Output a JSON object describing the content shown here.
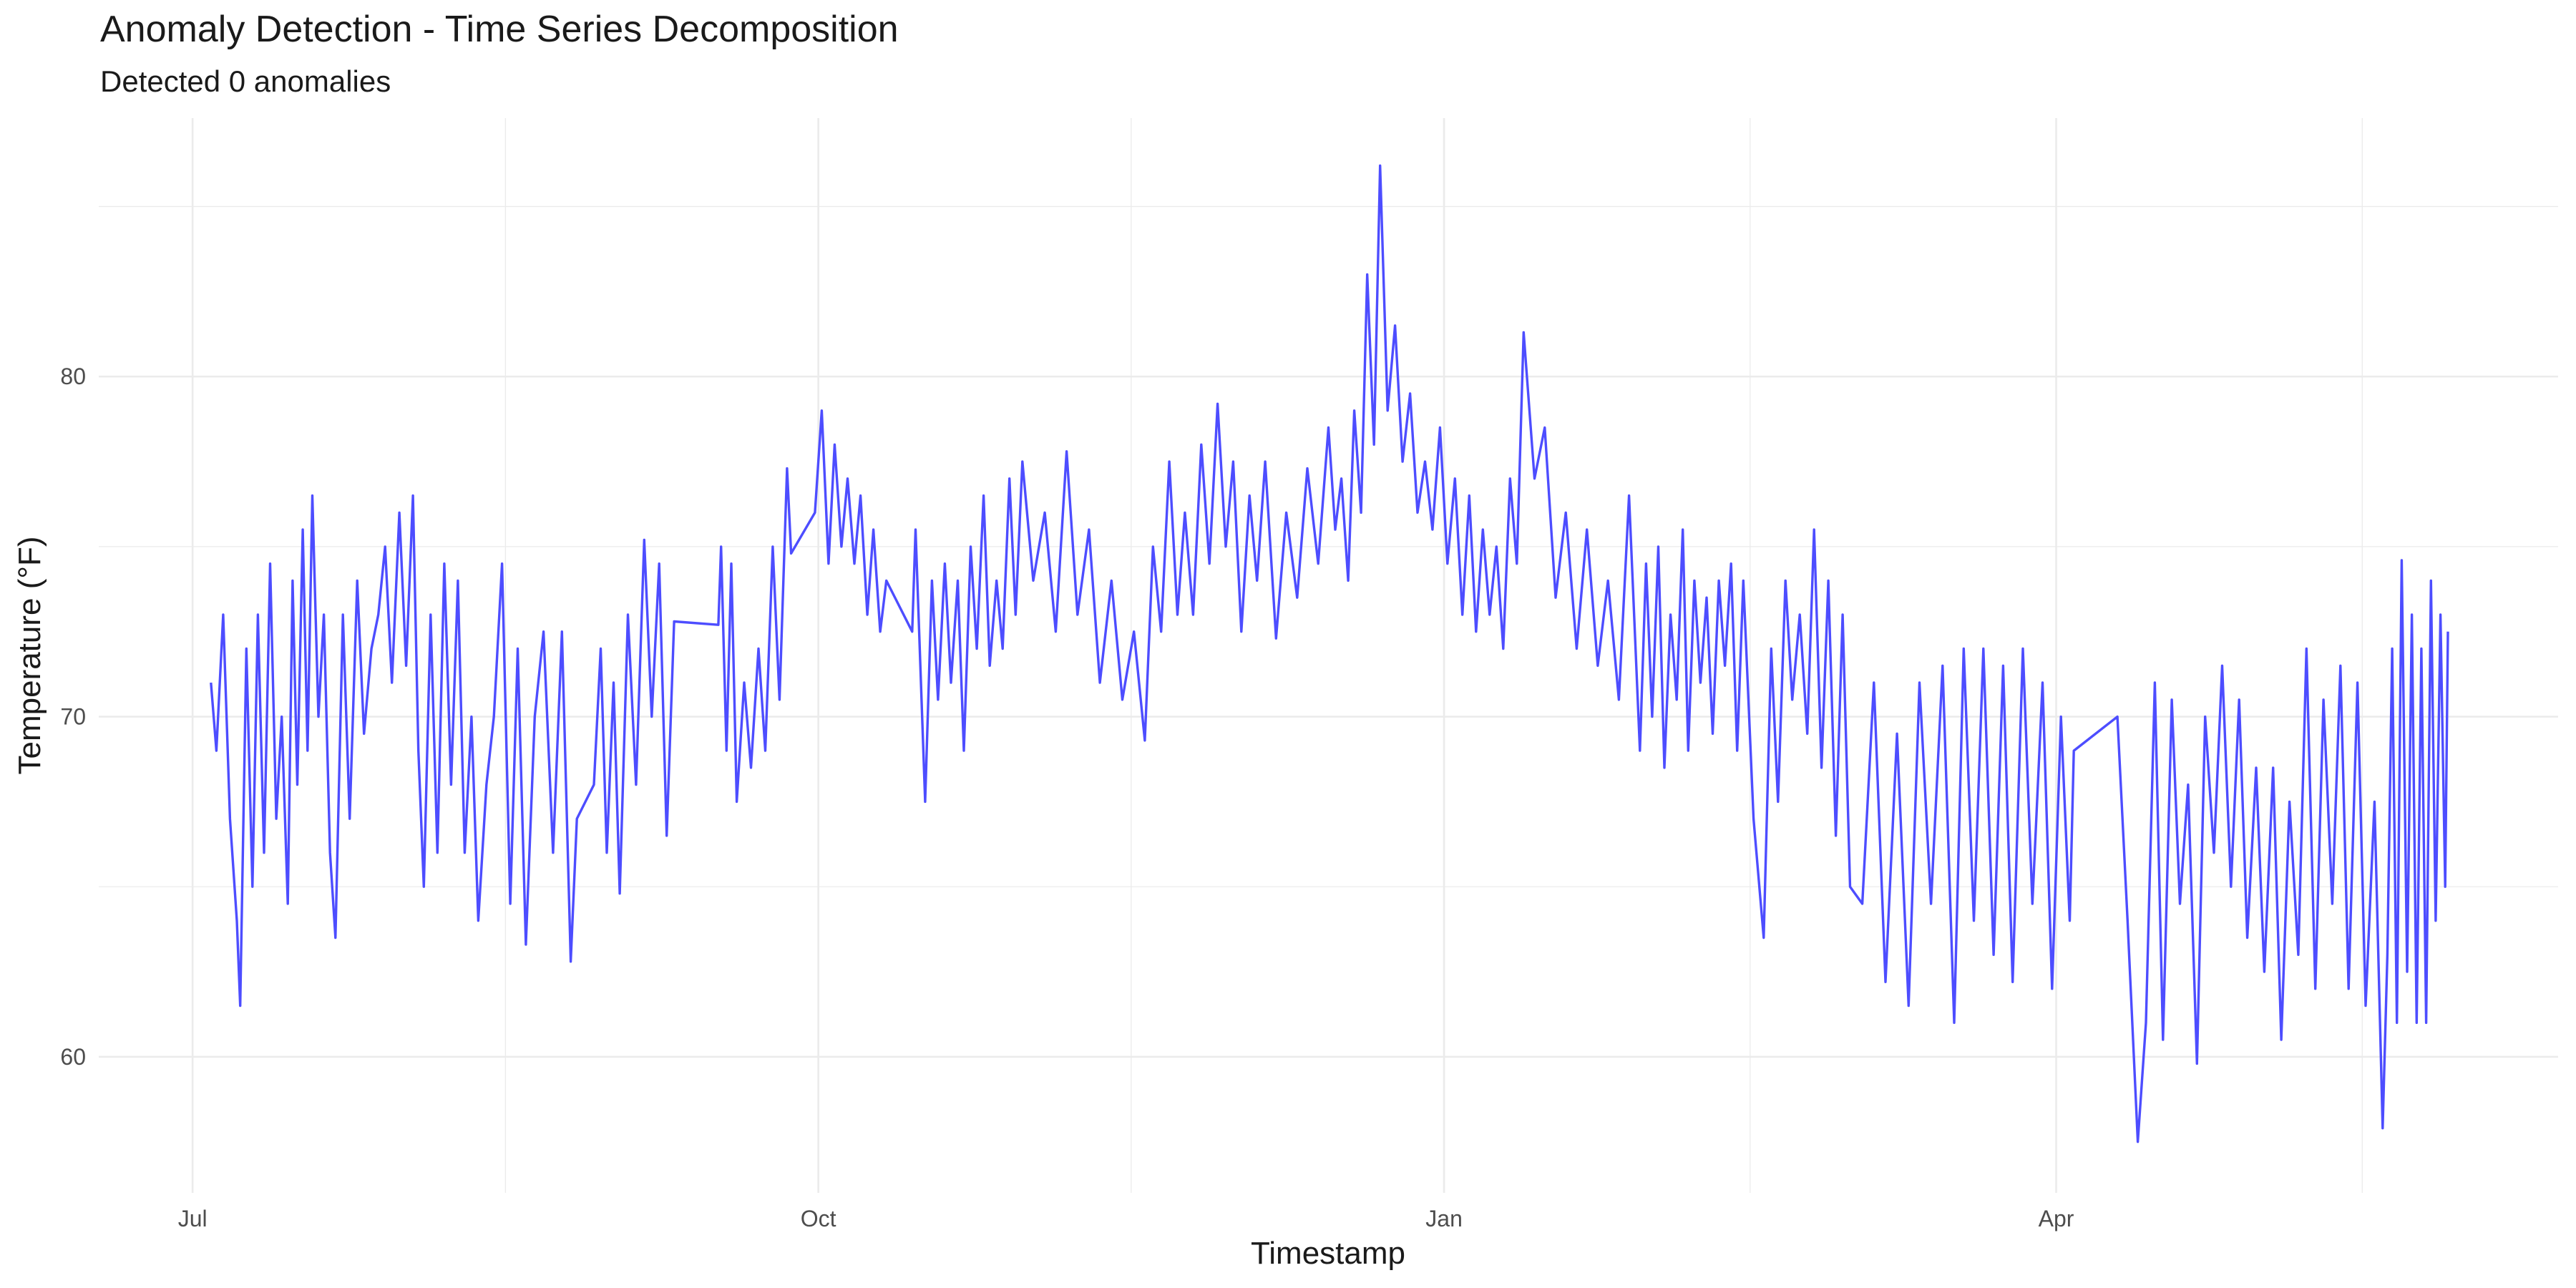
{
  "chart_data": {
    "type": "line",
    "title": "Anomaly Detection - Time Series Decomposition",
    "subtitle": "Detected 0 anomalies",
    "x_label": "Timestamp",
    "y_label": "Temperature (°F)",
    "xlim": [
      -13.8,
      347.8
    ],
    "xticks": [
      {
        "value": 0,
        "label": "Jul"
      },
      {
        "value": 92,
        "label": "Oct"
      },
      {
        "value": 184,
        "label": "Jan"
      },
      {
        "value": 274,
        "label": "Apr"
      }
    ],
    "ylim": [
      56,
      87.6
    ],
    "yticks": [
      60,
      70,
      80
    ],
    "grid": true,
    "x": [
      2.7,
      3.5,
      4.5,
      5.5,
      6.5,
      7,
      7.9,
      8.8,
      9.6,
      10.5,
      11.4,
      12.3,
      13.1,
      14,
      14.7,
      15.4,
      16.2,
      16.9,
      17.6,
      18.5,
      19.3,
      20.2,
      21,
      22.1,
      23.1,
      24.2,
      25.2,
      26.3,
      27.3,
      28.3,
      29.3,
      30.4,
      31.4,
      32.4,
      33.2,
      34,
      35,
      36,
      37,
      38,
      39,
      40,
      41,
      42,
      43.2,
      44.3,
      45.5,
      46.7,
      47.8,
      49,
      50.3,
      51.6,
      53,
      54.3,
      55.6,
      56.5,
      59,
      60,
      60.9,
      61.9,
      62.8,
      64,
      65.2,
      66.4,
      67.5,
      68.6,
      69.7,
      70.8,
      77.3,
      77.7,
      78.5,
      79.2,
      80,
      81.1,
      82.1,
      83.2,
      84.2,
      85.3,
      86.3,
      87.4,
      88,
      91.5,
      92.5,
      93.5,
      94.4,
      95.4,
      96.3,
      97.3,
      98.2,
      99.2,
      100.1,
      101.1,
      102,
      105.8,
      106.3,
      107.7,
      108.7,
      109.6,
      110.6,
      111.5,
      112.5,
      113.4,
      114.4,
      115.3,
      116.3,
      117.2,
      118.2,
      119.1,
      120.1,
      121,
      122,
      123.6,
      125.3,
      126.9,
      128.5,
      130.1,
      131.8,
      133.4,
      135.1,
      136.7,
      138.4,
      140,
      141.2,
      142.4,
      143.6,
      144.8,
      145.9,
      147.1,
      148.3,
      149.5,
      150.7,
      151.9,
      153,
      154.2,
      155.4,
      156.5,
      157.7,
      159.3,
      160.8,
      162.4,
      163.9,
      165.5,
      167,
      168,
      168.9,
      169.9,
      170.8,
      171.8,
      172.7,
      173.7,
      174.6,
      175.7,
      176.8,
      177.9,
      179,
      180.1,
      181.2,
      182.3,
      183.4,
      184.5,
      185.6,
      186.7,
      187.7,
      188.7,
      189.7,
      190.7,
      191.7,
      192.7,
      193.7,
      194.7,
      195.7,
      197.3,
      198.8,
      200.4,
      201.9,
      203.5,
      205,
      206.6,
      208.1,
      209.7,
      211.2,
      212.8,
      213.7,
      214.6,
      215.5,
      216.4,
      217.3,
      218.2,
      219.1,
      219.9,
      220.8,
      221.7,
      222.6,
      223.5,
      224.4,
      225.3,
      226.2,
      227.1,
      228,
      229.5,
      231,
      232.1,
      233.1,
      234.2,
      235.2,
      236.3,
      237.4,
      238.4,
      239.5,
      240.5,
      241.6,
      242.6,
      243.7,
      245.5,
      247.2,
      248.9,
      250.6,
      252.3,
      253.9,
      255.6,
      257.3,
      259,
      260.4,
      261.9,
      263.3,
      264.8,
      266.2,
      267.6,
      269.1,
      270.5,
      272,
      273.4,
      274.7,
      276,
      276.6,
      283,
      284.5,
      286,
      287.2,
      288.5,
      289.7,
      291,
      292.2,
      293.4,
      294.7,
      295.9,
      297.2,
      298.4,
      299.7,
      300.9,
      302.1,
      303.4,
      304.6,
      305.9,
      307.1,
      308.3,
      309.6,
      310.8,
      312.1,
      313.3,
      314.6,
      315.8,
      317,
      318.3,
      319.5,
      320.8,
      322,
      322.7,
      323.4,
      324.1,
      324.8,
      325.6,
      326.3,
      327,
      327.7,
      328.4,
      329.1,
      329.8,
      330.5,
      331.2,
      331.6
    ],
    "series": [
      {
        "color": "#4d4dff",
        "values": [
          71,
          69,
          73,
          67,
          64,
          61.5,
          72,
          65,
          73,
          66,
          74.5,
          67,
          70,
          64.5,
          74,
          68,
          75.5,
          69,
          76.5,
          70,
          73,
          66,
          63.5,
          73,
          67,
          74,
          69.5,
          72,
          73,
          75,
          71,
          76,
          71.5,
          76.5,
          69,
          65,
          73,
          66,
          74.5,
          68,
          74,
          66,
          70,
          64,
          68,
          70,
          74.5,
          64.5,
          72,
          63.3,
          70,
          72.5,
          66,
          72.5,
          62.8,
          67,
          68,
          72,
          66,
          71,
          64.8,
          73,
          68,
          75.2,
          70,
          74.5,
          66.5,
          72.8,
          72.7,
          75,
          69,
          74.5,
          67.5,
          71,
          68.5,
          72,
          69,
          75,
          70.5,
          77.3,
          74.8,
          76,
          79,
          74.5,
          78,
          75,
          77,
          74.5,
          76.5,
          73,
          75.5,
          72.5,
          74,
          72.5,
          75.5,
          67.5,
          74,
          70.5,
          74.5,
          71,
          74,
          69,
          75,
          72,
          76.5,
          71.5,
          74,
          72,
          77,
          73,
          77.5,
          74,
          76,
          72.5,
          77.8,
          73,
          75.5,
          71,
          74,
          70.5,
          72.5,
          69.3,
          75,
          72.5,
          77.5,
          73,
          76,
          73,
          78,
          74.5,
          79.2,
          75,
          77.5,
          72.5,
          76.5,
          74,
          77.5,
          72.3,
          76,
          73.5,
          77.3,
          74.5,
          78.5,
          75.5,
          77,
          74,
          79,
          76,
          83,
          78,
          86.2,
          79,
          81.5,
          77.5,
          79.5,
          76,
          77.5,
          75.5,
          78.5,
          74.5,
          77,
          73,
          76.5,
          72.5,
          75.5,
          73,
          75,
          72,
          77,
          74.5,
          81.3,
          77,
          78.5,
          73.5,
          76,
          72,
          75.5,
          71.5,
          74,
          70.5,
          76.5,
          69,
          74.5,
          70,
          75,
          68.5,
          73,
          70.5,
          75.5,
          69,
          74,
          71,
          73.5,
          69.5,
          74,
          71.5,
          74.5,
          69,
          74,
          67,
          63.5,
          72,
          67.5,
          74,
          70.5,
          73,
          69.5,
          75.5,
          68.5,
          74,
          66.5,
          73,
          65,
          64.5,
          71,
          62.2,
          69.5,
          61.5,
          71,
          64.5,
          71.5,
          61,
          72,
          64,
          72,
          63,
          71.5,
          62.2,
          72,
          64.5,
          71,
          62,
          70,
          64,
          69,
          70,
          64,
          57.5,
          61,
          71,
          60.5,
          70.5,
          64.5,
          68,
          59.8,
          70,
          66,
          71.5,
          65,
          70.5,
          63.5,
          68.5,
          62.5,
          68.5,
          60.5,
          67.5,
          63,
          72,
          62,
          70.5,
          64.5,
          71.5,
          62,
          71,
          61.5,
          67.5,
          57.9,
          63,
          72,
          61,
          74.6,
          62.5,
          73,
          61,
          72,
          61,
          74,
          64,
          73,
          65,
          72.5
        ]
      }
    ]
  }
}
